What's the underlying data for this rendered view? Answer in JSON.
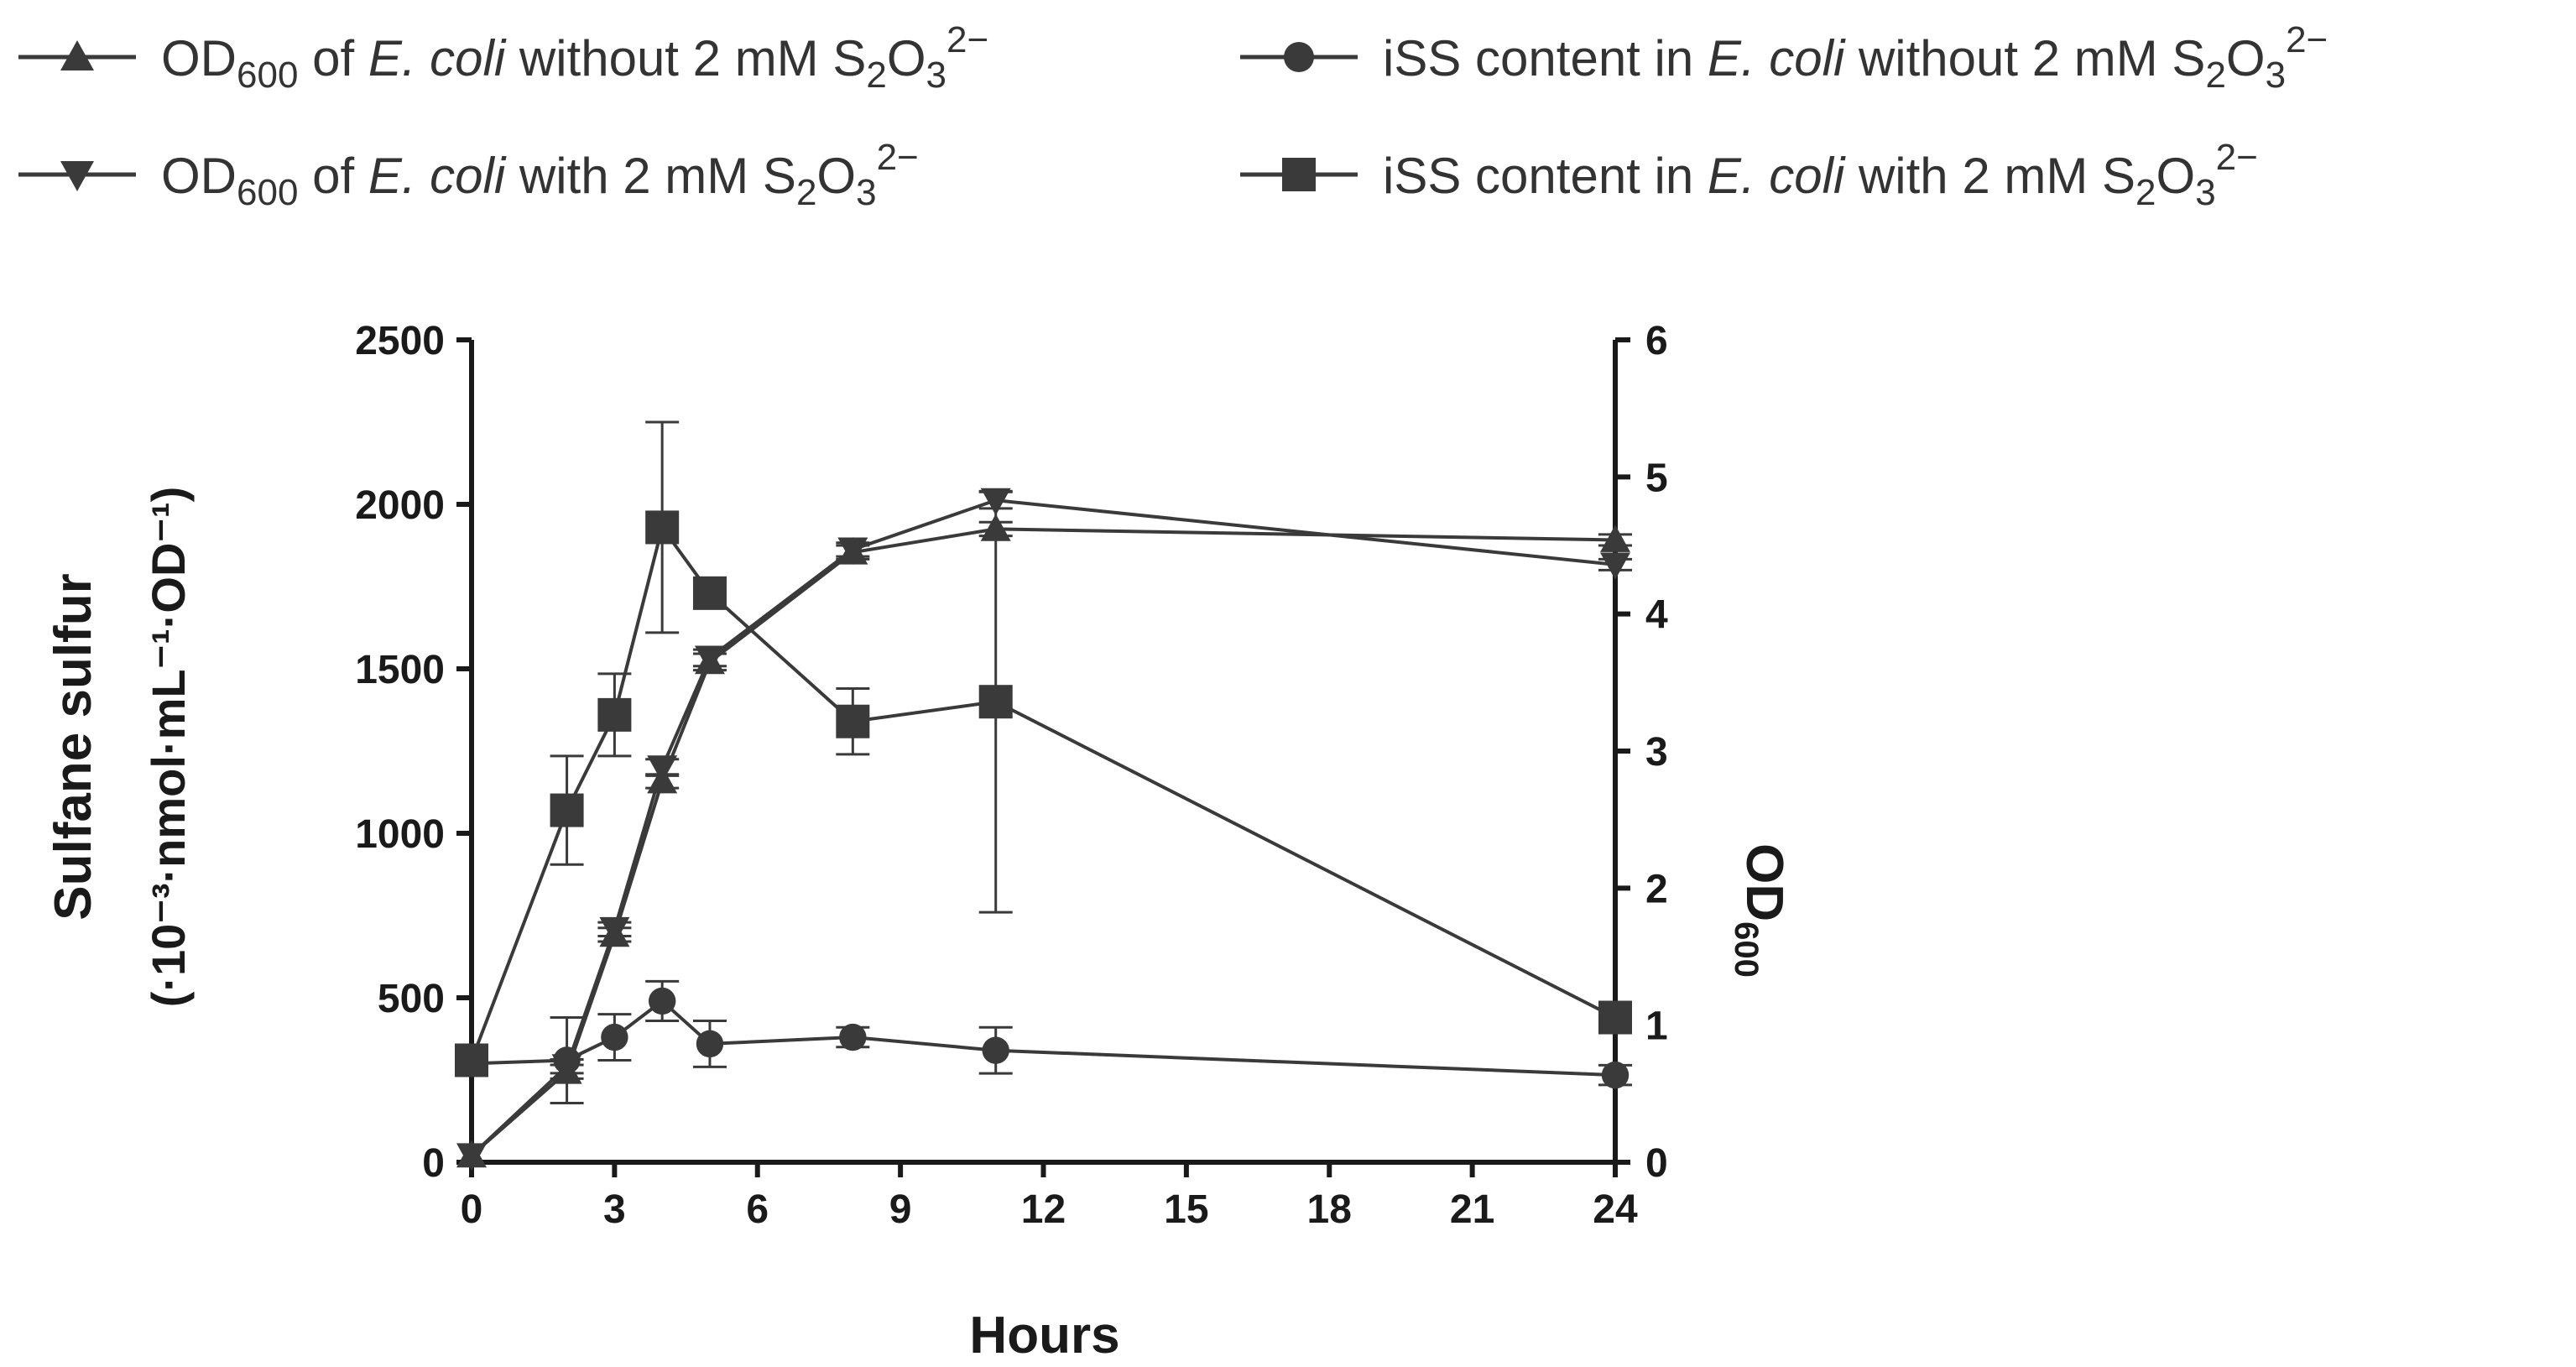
{
  "chart_data": {
    "type": "line",
    "x_axis": {
      "label": "Hours",
      "ticks": [
        0,
        3,
        6,
        9,
        12,
        15,
        18,
        21,
        24
      ],
      "range": [
        0,
        24
      ]
    },
    "y_axis_left": {
      "label": "Sulfane sulfur",
      "unit_label": "(·10⁻³·nmol·mL⁻¹·OD⁻¹)",
      "ticks": [
        0,
        500,
        1000,
        1500,
        2000,
        2500
      ],
      "range": [
        0,
        2500
      ]
    },
    "y_axis_right": {
      "label": "OD600",
      "ticks": [
        0,
        1,
        2,
        3,
        4,
        5,
        6
      ],
      "range": [
        0,
        6
      ]
    },
    "series": [
      {
        "id": "od-without",
        "name": "OD600 of E. coli without 2 mM S2O3 2−",
        "legend": {
          "pre": "OD",
          "sub1": "600",
          "mid": " of ",
          "italic": "E. coli",
          "post": " without 2 mM S",
          "sub2": "2",
          "o": "O",
          "sub3": "3",
          "sup": "2−"
        },
        "marker": "triangle-up",
        "axis": "right",
        "x": [
          0,
          2,
          3,
          4,
          5,
          8,
          11,
          24
        ],
        "y": [
          0.05,
          0.66,
          1.66,
          2.78,
          3.65,
          4.45,
          4.62,
          4.54
        ],
        "err": [
          0,
          0.05,
          0.05,
          0.05,
          0.06,
          0.05,
          0.05,
          0.04
        ]
      },
      {
        "id": "od-with",
        "name": "OD600 of E. coli with 2 mM S2O3 2−",
        "legend": {
          "pre": "OD",
          "sub1": "600",
          "mid": " of ",
          "italic": "E. coli",
          "post": " with 2 mM S",
          "sub2": "2",
          "o": "O",
          "sub3": "3",
          "sup": "2−"
        },
        "marker": "triangle-down",
        "axis": "right",
        "x": [
          0,
          2,
          3,
          4,
          5,
          8,
          11,
          24
        ],
        "y": [
          0.05,
          0.7,
          1.7,
          2.88,
          3.68,
          4.47,
          4.83,
          4.36
        ],
        "err": [
          0,
          0.05,
          0.05,
          0.06,
          0.06,
          0.05,
          0.06,
          0.04
        ]
      },
      {
        "id": "iss-without",
        "name": "iSS content in E. coli without 2 mM S2O3 2−",
        "legend": {
          "pre": "iSS content in ",
          "italic": "E. coli",
          "post": " without 2 mM S",
          "sub2": "2",
          "o": "O",
          "sub3": "3",
          "sup": "2−"
        },
        "marker": "circle",
        "axis": "left",
        "x": [
          0,
          2,
          3,
          4,
          5,
          8,
          11,
          24
        ],
        "y": [
          300,
          310,
          380,
          490,
          360,
          380,
          340,
          265
        ],
        "err": [
          0,
          130,
          70,
          60,
          70,
          30,
          70,
          30
        ]
      },
      {
        "id": "iss-with",
        "name": "iSS content in E. coli with 2 mM S2O3 2−",
        "legend": {
          "pre": "iSS content in ",
          "italic": "E. coli",
          "post": " with 2 mM S",
          "sub2": "2",
          "o": "O",
          "sub3": "3",
          "sup": "2−"
        },
        "marker": "square",
        "axis": "left",
        "x": [
          0,
          2,
          3,
          4,
          5,
          8,
          11,
          24
        ],
        "y": [
          310,
          1070,
          1360,
          1930,
          1730,
          1340,
          1400,
          440
        ],
        "err": [
          0,
          165,
          125,
          320,
          45,
          100,
          640,
          30
        ]
      }
    ]
  }
}
